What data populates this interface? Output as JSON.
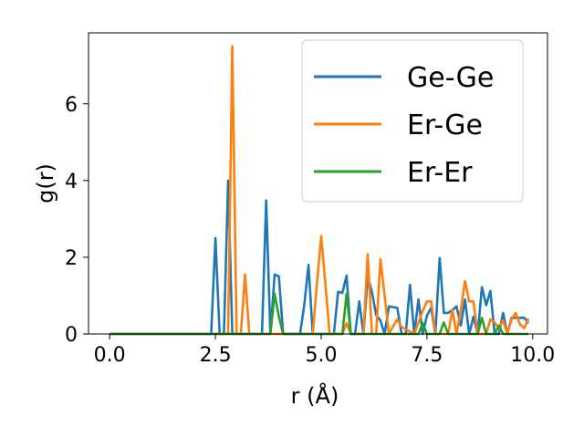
{
  "chart_data": {
    "type": "line",
    "title": "",
    "xlabel": "r (Å)",
    "ylabel": "g(r)",
    "xlim": [
      -0.5,
      10.35
    ],
    "ylim": [
      0,
      7.85
    ],
    "xticks": [
      0.0,
      2.5,
      5.0,
      7.5,
      10.0
    ],
    "xtick_labels": [
      "0.0",
      "2.5",
      "5.0",
      "7.5",
      "10.0"
    ],
    "yticks": [
      0,
      2,
      4,
      6
    ],
    "ytick_labels": [
      "0",
      "2",
      "4",
      "6"
    ],
    "grid": false,
    "legend_position": "top-right",
    "series": [
      {
        "name": "Ge-Ge",
        "color": "#1f77b4",
        "x": [
          0.0,
          2.4,
          2.5,
          2.6,
          2.7,
          2.8,
          2.9,
          3.0,
          3.6,
          3.7,
          3.8,
          3.9,
          4.0,
          4.1,
          4.5,
          4.6,
          4.7,
          4.8,
          4.9,
          5.3,
          5.4,
          5.5,
          5.6,
          5.7,
          5.8,
          5.9,
          6.0,
          6.1,
          6.2,
          6.3,
          6.4,
          6.5,
          6.6,
          6.7,
          6.8,
          6.9,
          7.0,
          7.1,
          7.2,
          7.3,
          7.4,
          7.5,
          7.6,
          7.7,
          7.8,
          7.9,
          8.0,
          8.1,
          8.2,
          8.3,
          8.4,
          8.5,
          8.6,
          8.7,
          8.8,
          8.9,
          9.0,
          9.1,
          9.2,
          9.3,
          9.4,
          9.5,
          9.6,
          9.7,
          9.8,
          9.9
        ],
        "values": [
          0.0,
          0.0,
          2.5,
          0.0,
          0.0,
          4.0,
          0.0,
          0.0,
          0.0,
          3.48,
          0.0,
          1.55,
          1.5,
          0.0,
          0.0,
          0.75,
          1.8,
          0.0,
          0.0,
          0.0,
          1.1,
          1.07,
          1.52,
          0.0,
          0.0,
          0.85,
          0.0,
          1.5,
          1.1,
          0.5,
          0.35,
          0.0,
          0.72,
          0.7,
          0.68,
          0.0,
          0.0,
          1.28,
          0.0,
          0.9,
          0.0,
          0.48,
          0.68,
          0.0,
          1.98,
          0.55,
          0.55,
          0.62,
          0.72,
          0.22,
          0.9,
          0.0,
          0.45,
          0.0,
          1.22,
          0.75,
          1.12,
          0.0,
          0.0,
          0.55,
          0.0,
          0.42,
          0.42,
          0.42,
          0.42,
          0.28
        ]
      },
      {
        "name": "Er-Ge",
        "color": "#ff7f0e",
        "x": [
          0.0,
          2.8,
          2.9,
          3.0,
          3.1,
          3.2,
          3.3,
          4.8,
          4.9,
          5.0,
          5.1,
          5.2,
          5.5,
          5.6,
          5.7,
          6.0,
          6.1,
          6.2,
          6.3,
          6.4,
          6.5,
          6.6,
          6.7,
          6.8,
          6.9,
          7.2,
          7.3,
          7.4,
          7.5,
          7.6,
          7.7,
          8.0,
          8.1,
          8.2,
          8.3,
          8.4,
          8.5,
          8.6,
          8.7,
          8.8,
          8.9,
          9.0,
          9.1,
          9.2,
          9.3,
          9.4,
          9.5,
          9.6,
          9.7,
          9.8,
          9.9
        ],
        "values": [
          0.0,
          0.0,
          7.5,
          0.0,
          0.0,
          1.55,
          0.0,
          0.0,
          1.3,
          2.55,
          1.3,
          0.0,
          0.0,
          0.28,
          0.0,
          0.0,
          2.08,
          0.0,
          0.0,
          1.95,
          1.0,
          0.0,
          0.2,
          0.38,
          0.18,
          0.0,
          0.3,
          0.6,
          0.85,
          0.85,
          0.0,
          0.0,
          0.62,
          0.0,
          0.62,
          1.38,
          0.85,
          0.85,
          0.0,
          0.0,
          0.0,
          0.38,
          0.3,
          0.15,
          0.35,
          0.0,
          0.38,
          0.55,
          0.25,
          0.15,
          0.4
        ]
      },
      {
        "name": "Er-Er",
        "color": "#2ca02c",
        "x": [
          0.0,
          3.8,
          3.9,
          4.0,
          4.1,
          5.5,
          5.6,
          5.7,
          5.8,
          7.3,
          7.4,
          7.5,
          7.8,
          7.9,
          8.0,
          8.7,
          8.8,
          8.9,
          9.1,
          9.2,
          9.3,
          9.9
        ],
        "values": [
          0.0,
          0.0,
          1.05,
          0.45,
          0.0,
          0.0,
          1.05,
          0.0,
          0.0,
          0.0,
          0.28,
          0.0,
          0.0,
          0.3,
          0.0,
          0.0,
          0.42,
          0.0,
          0.0,
          0.22,
          0.0,
          0.0
        ]
      }
    ]
  }
}
